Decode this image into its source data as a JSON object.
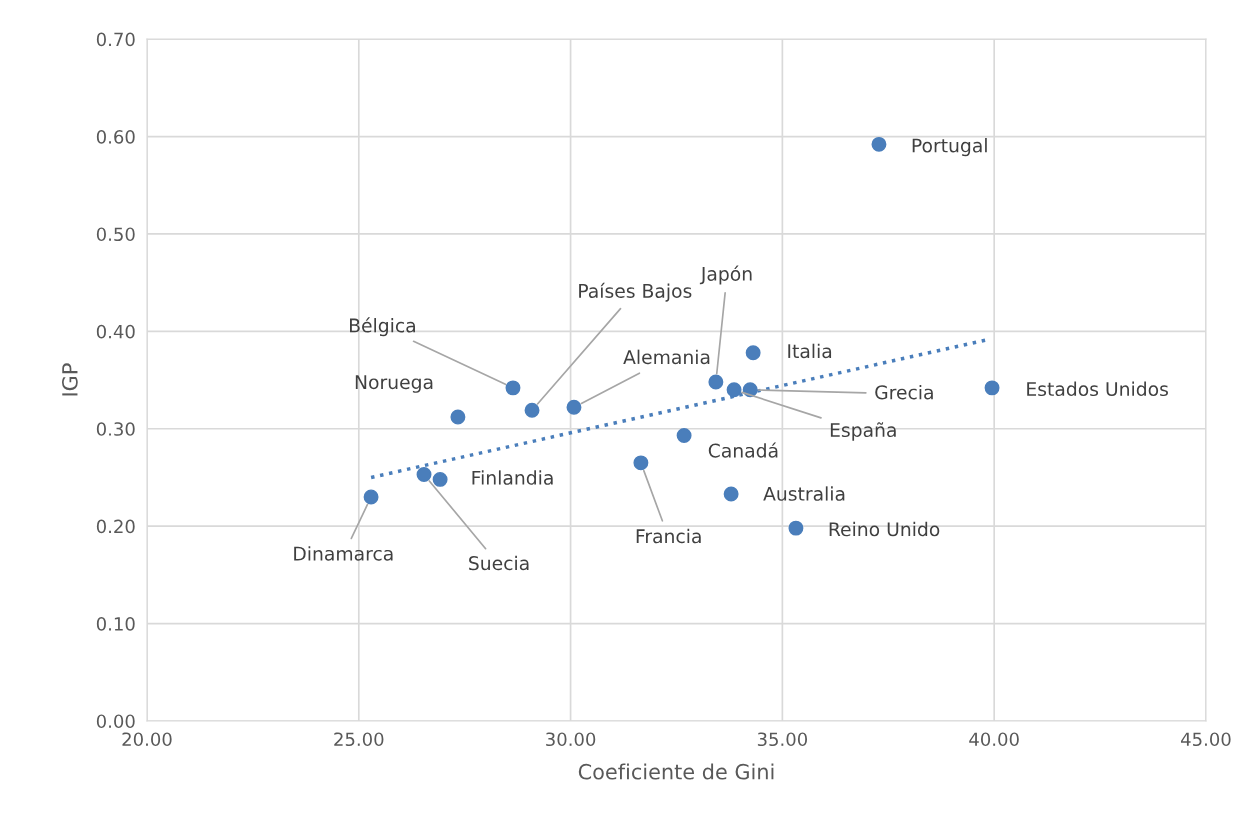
{
  "chart_data": {
    "type": "scatter",
    "xlabel": "Coeficiente de Gini",
    "ylabel": "IGP",
    "xlim": [
      20,
      45
    ],
    "ylim": [
      0,
      0.7
    ],
    "xticks": [
      {
        "value": 20,
        "label": "20.00"
      },
      {
        "value": 25,
        "label": "25.00"
      },
      {
        "value": 30,
        "label": "30.00"
      },
      {
        "value": 35,
        "label": "35.00"
      },
      {
        "value": 40,
        "label": "40.00"
      },
      {
        "value": 45,
        "label": "45.00"
      }
    ],
    "yticks": [
      {
        "value": 0,
        "label": "0.00"
      },
      {
        "value": 0.1,
        "label": "0.10"
      },
      {
        "value": 0.2,
        "label": "0.20"
      },
      {
        "value": 0.3,
        "label": "0.30"
      },
      {
        "value": 0.4,
        "label": "0.40"
      },
      {
        "value": 0.5,
        "label": "0.50"
      },
      {
        "value": 0.6,
        "label": "0.60"
      },
      {
        "value": 0.7,
        "label": "0.70"
      }
    ],
    "grid": true,
    "marker": "circle",
    "series": [
      {
        "type": "scatter",
        "color": "#4a7ebb",
        "x": [
          25.29,
          26.54,
          26.92,
          27.34,
          28.64,
          29.09,
          30.08,
          31.66,
          32.68,
          33.43,
          33.79,
          33.86,
          34.24,
          34.31,
          35.32,
          37.28,
          39.95
        ],
        "values": [
          0.23,
          0.253,
          0.248,
          0.312,
          0.342,
          0.319,
          0.322,
          0.265,
          0.293,
          0.348,
          0.233,
          0.34,
          0.34,
          0.378,
          0.198,
          0.592,
          0.342
        ]
      },
      {
        "type": "line",
        "color": "#4a7ebb",
        "line_style": "dotted",
        "marker": "none",
        "x": [
          25.29,
          39.9
        ],
        "values": [
          0.25,
          0.392
        ]
      }
    ],
    "annotations": [
      {
        "text": "Dinamarca",
        "x": 25.29,
        "y": 0.23
      },
      {
        "text": "Suecia",
        "x": 26.54,
        "y": 0.253
      },
      {
        "text": "Finlandia",
        "x": 26.92,
        "y": 0.248
      },
      {
        "text": "Noruega",
        "x": 27.34,
        "y": 0.312
      },
      {
        "text": "Bélgica",
        "x": 28.64,
        "y": 0.342
      },
      {
        "text": "Países Bajos",
        "x": 29.09,
        "y": 0.319
      },
      {
        "text": "Alemania",
        "x": 30.08,
        "y": 0.322
      },
      {
        "text": "Francia",
        "x": 31.66,
        "y": 0.265
      },
      {
        "text": "Canadá",
        "x": 32.68,
        "y": 0.293
      },
      {
        "text": "Japón",
        "x": 33.43,
        "y": 0.348
      },
      {
        "text": "Australia",
        "x": 33.79,
        "y": 0.233
      },
      {
        "text": "España",
        "x": 33.86,
        "y": 0.34
      },
      {
        "text": "Grecia",
        "x": 34.24,
        "y": 0.34
      },
      {
        "text": "Italia",
        "x": 34.31,
        "y": 0.378
      },
      {
        "text": "Reino Unido",
        "x": 35.32,
        "y": 0.198
      },
      {
        "text": "Portugal",
        "x": 37.28,
        "y": 0.592
      },
      {
        "text": "Estados Unidos",
        "x": 39.95,
        "y": 0.342
      }
    ]
  }
}
